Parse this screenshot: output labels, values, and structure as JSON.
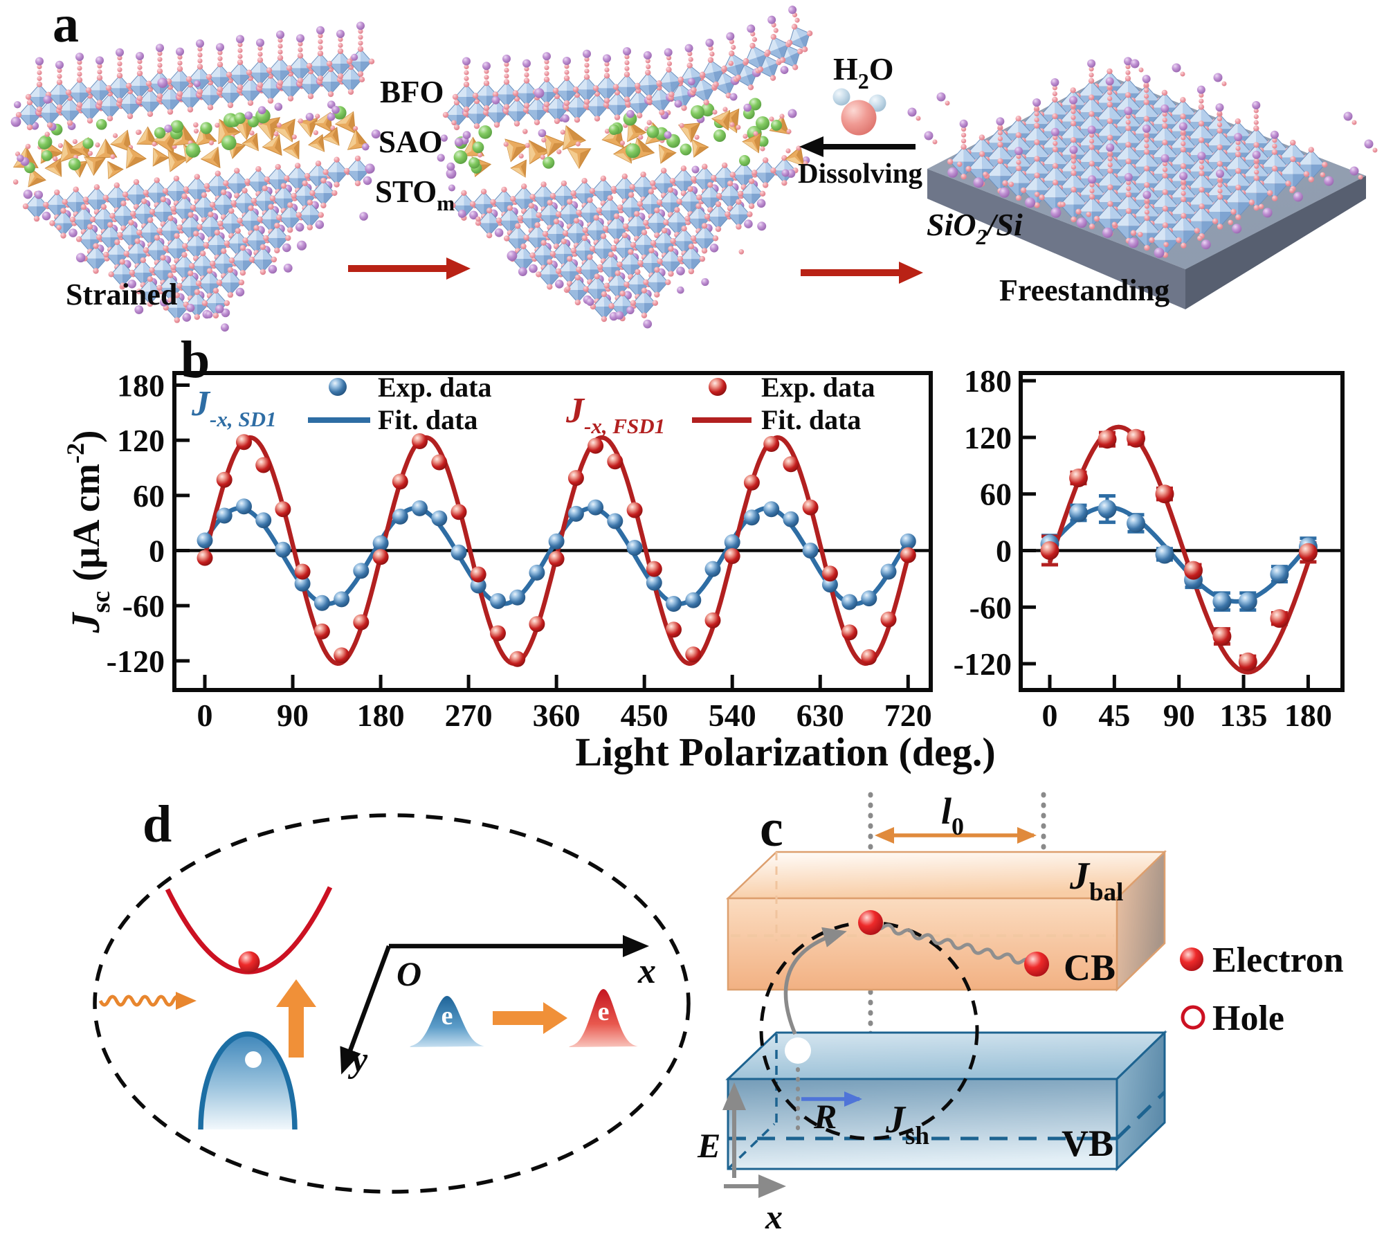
{
  "figure": {
    "background": "#ffffff"
  },
  "panel_a": {
    "label": "a",
    "layer_labels": {
      "bfo": "BFO",
      "sao": "SAO",
      "sto_main": "STO",
      "sto_sub": "m"
    },
    "strained_label": "Strained",
    "freestanding_label": "Freestanding",
    "dissolving_label": "Dissolving",
    "water_label": {
      "main": "H",
      "sub": "2",
      "end": "O"
    },
    "substrate_label": {
      "main": "SiO",
      "sub": "2",
      "end": "/Si"
    },
    "colors": {
      "octa_light": "#d6e5f5",
      "octa_mid1": "#b5cfec",
      "octa_mid2": "#9abadf",
      "octa_dark": "#7fa4d1",
      "octa_stroke": "#6c90bd",
      "oxygen_pink": "#ee9aa3",
      "cation_purple": "#b583c9",
      "ion_green": "#74c25c",
      "tetra_light": "#f4cf96",
      "tetra_mid": "#e9ab5f",
      "tetra_dark": "#c9873a",
      "substrate_top": "#8d96a8",
      "substrate_front": "#6e7689",
      "substrate_side": "#575f70",
      "arrow_red": "#b92215",
      "arrow_black": "#0b0b0b",
      "water_o": "#ef8d88",
      "water_h": "#b9d2e4"
    }
  },
  "panel_b": {
    "label": "b",
    "xlabel": "Light Polarization (deg.)",
    "ylabel": {
      "j": "J",
      "sub": "sc",
      "mid": " (μA cm",
      "sup": "-2",
      "end": ")"
    },
    "series_label_blue": {
      "main": "J",
      "sub": "-x, SD1"
    },
    "series_label_red": {
      "main": "J",
      "sub": "-x, FSD1"
    },
    "legend": {
      "exp": "Exp. data",
      "fit": "Fit. data"
    },
    "colors": {
      "blue": "#2e6da4",
      "red": "#b22020"
    }
  },
  "chart_data": [
    {
      "id": "left",
      "type": "scatter",
      "title": "",
      "xlabel": "Light Polarization (deg.)",
      "ylabel": "Jsc (uA cm-2)",
      "x_ticks": [
        0,
        90,
        180,
        270,
        360,
        450,
        540,
        630,
        720
      ],
      "y_ticks": [
        -120,
        -60,
        0,
        60,
        120,
        180
      ],
      "xlim": [
        -31,
        743
      ],
      "ylim": [
        -152,
        193
      ],
      "grid": false,
      "legend_position": "top-inside",
      "series": [
        {
          "name": "J-x, SD1 Exp. data",
          "kind": "points",
          "color": "#2e6da4",
          "points": [
            [
              0,
              11
            ],
            [
              20,
              38
            ],
            [
              40,
              48
            ],
            [
              60,
              33
            ],
            [
              80,
              1
            ],
            [
              100,
              -36
            ],
            [
              120,
              -57
            ],
            [
              140,
              -53
            ],
            [
              160,
              -22
            ],
            [
              180,
              8
            ],
            [
              200,
              37
            ],
            [
              220,
              46
            ],
            [
              240,
              35
            ],
            [
              260,
              -2
            ],
            [
              280,
              -38
            ],
            [
              300,
              -55
            ],
            [
              320,
              -51
            ],
            [
              340,
              -24
            ],
            [
              360,
              10
            ],
            [
              380,
              40
            ],
            [
              400,
              47
            ],
            [
              420,
              32
            ],
            [
              440,
              3
            ],
            [
              460,
              -35
            ],
            [
              480,
              -58
            ],
            [
              500,
              -54
            ],
            [
              520,
              -20
            ],
            [
              540,
              9
            ],
            [
              560,
              36
            ],
            [
              580,
              45
            ],
            [
              600,
              34
            ],
            [
              620,
              0
            ],
            [
              640,
              -37
            ],
            [
              660,
              -56
            ],
            [
              680,
              -52
            ],
            [
              700,
              -23
            ],
            [
              720,
              10
            ]
          ]
        },
        {
          "name": "J-x, SD1 Fit. data",
          "kind": "fit-line",
          "color": "#2e6da4",
          "fit": {
            "amplitude": 52,
            "phase_deg": 19,
            "offset": -6,
            "range": [
              0,
              720
            ]
          }
        },
        {
          "name": "J-x, FSD1 Exp. data",
          "kind": "points",
          "color": "#b22020",
          "points": [
            [
              0,
              -8
            ],
            [
              20,
              77
            ],
            [
              40,
              118
            ],
            [
              60,
              93
            ],
            [
              80,
              45
            ],
            [
              100,
              -23
            ],
            [
              120,
              -88
            ],
            [
              140,
              -114
            ],
            [
              160,
              -78
            ],
            [
              180,
              -7
            ],
            [
              200,
              75
            ],
            [
              220,
              119
            ],
            [
              240,
              96
            ],
            [
              260,
              42
            ],
            [
              280,
              -26
            ],
            [
              300,
              -90
            ],
            [
              320,
              -118
            ],
            [
              340,
              -80
            ],
            [
              360,
              -9
            ],
            [
              380,
              79
            ],
            [
              400,
              114
            ],
            [
              420,
              97
            ],
            [
              440,
              44
            ],
            [
              460,
              -20
            ],
            [
              480,
              -86
            ],
            [
              500,
              -113
            ],
            [
              520,
              -76
            ],
            [
              540,
              -6
            ],
            [
              560,
              74
            ],
            [
              580,
              116
            ],
            [
              600,
              94
            ],
            [
              620,
              47
            ],
            [
              640,
              -25
            ],
            [
              660,
              -89
            ],
            [
              680,
              -116
            ],
            [
              700,
              -75
            ],
            [
              720,
              -5
            ]
          ]
        },
        {
          "name": "J-x, FSD1 Fit. data",
          "kind": "fit-line",
          "color": "#b22020",
          "fit": {
            "amplitude": 123,
            "phase_deg": -3,
            "offset": 0,
            "range": [
              0,
              720
            ]
          }
        }
      ]
    },
    {
      "id": "right",
      "type": "scatter",
      "title": "",
      "xlabel": "Light Polarization (deg.)",
      "ylabel": "Jsc (uA cm-2)",
      "x_ticks": [
        0,
        45,
        90,
        135,
        180
      ],
      "y_ticks": [
        -120,
        -60,
        0,
        60,
        120,
        180
      ],
      "xlim": [
        -20,
        204
      ],
      "ylim": [
        -152,
        193
      ],
      "grid": false,
      "legend_position": "none",
      "series": [
        {
          "name": "J-x, SD1 Exp. data",
          "kind": "points",
          "color": "#2e6da4",
          "points": [
            [
              0,
              7
            ],
            [
              20,
              40
            ],
            [
              40,
              44
            ],
            [
              60,
              29
            ],
            [
              80,
              -4
            ],
            [
              100,
              -31
            ],
            [
              120,
              -54
            ],
            [
              138,
              -54
            ],
            [
              160,
              -25
            ],
            [
              180,
              4
            ]
          ],
          "errors": [
            9,
            8,
            14,
            9,
            6,
            8,
            9,
            9,
            8,
            9
          ]
        },
        {
          "name": "J-x, SD1 Fit. data",
          "kind": "fit-line",
          "color": "#2e6da4",
          "fit": {
            "amplitude": 50,
            "phase_deg": 10,
            "offset": -4,
            "range": [
              0,
              180
            ]
          }
        },
        {
          "name": "J-x, FSD1 Exp. data",
          "kind": "points",
          "color": "#b22020",
          "points": [
            [
              0,
              0
            ],
            [
              20,
              77
            ],
            [
              40,
              118
            ],
            [
              60,
              119
            ],
            [
              80,
              60
            ],
            [
              100,
              -21
            ],
            [
              120,
              -91
            ],
            [
              138,
              -118
            ],
            [
              160,
              -72
            ],
            [
              180,
              -2
            ]
          ],
          "errors": [
            15,
            6,
            7,
            6,
            6,
            6,
            8,
            6,
            6,
            10
          ]
        },
        {
          "name": "J-x, FSD1 Fit. data",
          "kind": "fit-line",
          "color": "#b22020",
          "fit": {
            "amplitude": 130,
            "phase_deg": -6,
            "offset": 1,
            "range": [
              0,
              180
            ]
          }
        }
      ]
    }
  ],
  "panel_c": {
    "label": "c",
    "l0_label": {
      "main": "l",
      "sub": "0"
    },
    "jbal_label": {
      "main": "J",
      "sub": "bal"
    },
    "jsh_label": {
      "main": "J",
      "sub": "sh"
    },
    "cb_label": "CB",
    "vb_label": "VB",
    "r_label": "R",
    "e_axis_label": "E",
    "x_axis_label": "x",
    "legend": {
      "electron": "Electron",
      "hole": "Hole"
    },
    "colors": {
      "cb_orange": "#f3b98c",
      "vb_blue": "#2272a5",
      "electron_red": "#e01220",
      "wavy_gray": "#8f8f8f",
      "r_arrow_blue": "#4f74d8",
      "l0_orange": "#e08a3c"
    }
  },
  "panel_d": {
    "label": "d",
    "origin_label": "O",
    "x_axis_label": "x",
    "y_axis_label": "y",
    "electron_label": "e",
    "colors": {
      "cb_parabola_red": "#cc1122",
      "vb_dome_blue": "#1c6ea4",
      "photon_orange": "#e8862e",
      "shift_arrow_orange": "#f09038"
    }
  }
}
